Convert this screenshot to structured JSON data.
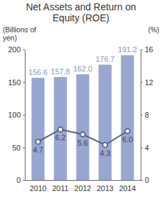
{
  "chart_data": {
    "type": "bar",
    "title": "Net Assets and Return on Equity (ROE)",
    "ylabel": "(Billions of yen)",
    "y2label": "(%)",
    "categories": [
      "2010",
      "2011",
      "2012",
      "2013",
      "2014"
    ],
    "series": [
      {
        "type": "bar",
        "color": "#98a6d1",
        "values": [
          156.6,
          157.8,
          162.0,
          176.7,
          191.2
        ],
        "value_labels": [
          "156.6",
          "157.8",
          "162.0",
          "176.7",
          "191.2"
        ]
      },
      {
        "type": "line",
        "axis": "y2",
        "color": "#52617f",
        "marker": "circle",
        "values": [
          4.7,
          6.2,
          5.6,
          4.3,
          6.0
        ],
        "value_labels": [
          "4.7",
          "6.2",
          "5.6",
          "4.3",
          "6.0"
        ]
      }
    ],
    "ylim": [
      0,
      200
    ],
    "yticks": [
      0,
      50,
      100,
      150,
      200
    ],
    "y2lim": [
      0,
      16
    ],
    "y2ticks": [
      0,
      4,
      8,
      12,
      16
    ],
    "grid": false,
    "data_labels": true
  }
}
